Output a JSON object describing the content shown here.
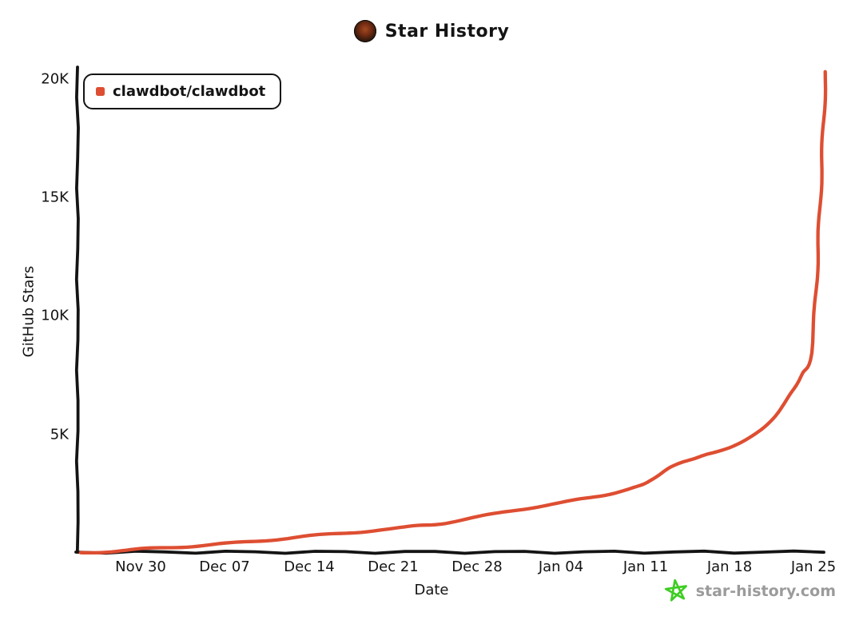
{
  "title": {
    "text": "Star History"
  },
  "watermark": {
    "text": "star-history.com",
    "text_color": "#9b9b9b",
    "star_color": "#3ecd23"
  },
  "colors": {
    "axis": "#141414",
    "series": "#DE4E32"
  },
  "chart_data": {
    "type": "line",
    "title": "Star History",
    "xlabel": "Date",
    "ylabel": "GitHub Stars",
    "grid": false,
    "legend_position": "top-left",
    "ylim": [
      0,
      20500
    ],
    "x_ticks": [
      "Nov 30",
      "Dec 07",
      "Dec 14",
      "Dec 21",
      "Dec 28",
      "Jan 04",
      "Jan 11",
      "Jan 18",
      "Jan 25"
    ],
    "y_ticks": [
      "5K",
      "10K",
      "15K",
      "20K"
    ],
    "y_tick_values": [
      5000,
      10000,
      15000,
      20000
    ],
    "series": [
      {
        "name": "clawdbot/clawdbot",
        "color": "#DE4E32",
        "points": [
          [
            "Nov 25",
            10
          ],
          [
            "Nov 28",
            80
          ],
          [
            "Nov 30",
            150
          ],
          [
            "Dec 03",
            250
          ],
          [
            "Dec 07",
            380
          ],
          [
            "Dec 10",
            520
          ],
          [
            "Dec 14",
            700
          ],
          [
            "Dec 17",
            850
          ],
          [
            "Dec 21",
            1000
          ],
          [
            "Dec 23",
            1150
          ],
          [
            "Dec 25",
            1250
          ],
          [
            "Dec 28",
            1500
          ],
          [
            "Dec 31",
            1800
          ],
          [
            "Jan 02",
            1950
          ],
          [
            "Jan 04",
            2100
          ],
          [
            "Jan 06",
            2300
          ],
          [
            "Jan 08",
            2500
          ],
          [
            "Jan 10",
            2750
          ],
          [
            "Jan 11",
            2900
          ],
          [
            "Jan 12",
            3200
          ],
          [
            "Jan 13",
            3600
          ],
          [
            "Jan 14",
            3850
          ],
          [
            "Jan 15",
            4000
          ],
          [
            "Jan 16",
            4150
          ],
          [
            "Jan 17",
            4250
          ],
          [
            "Jan 18",
            4400
          ],
          [
            "Jan 19",
            4650
          ],
          [
            "Jan 20",
            5000
          ],
          [
            "Jan 21",
            5400
          ],
          [
            "Jan 22",
            5900
          ],
          [
            "Jan 23",
            6600
          ],
          [
            "Jan 24",
            7500
          ],
          [
            "Jan 25",
            9500
          ],
          [
            "Jan 26",
            20300
          ]
        ]
      }
    ]
  }
}
